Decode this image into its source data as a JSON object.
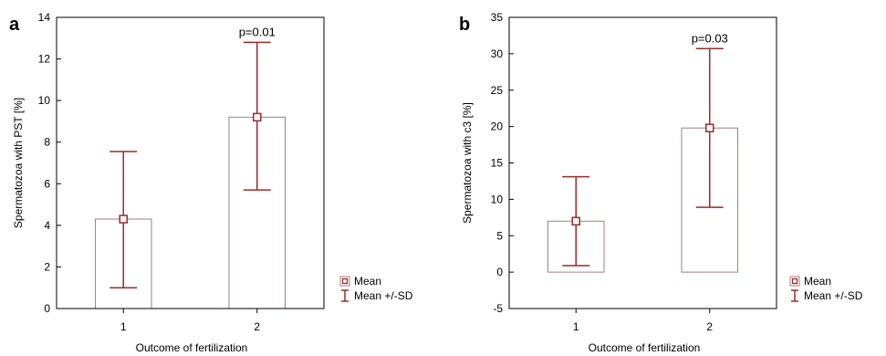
{
  "chart_data": [
    {
      "type": "bar",
      "panel_label": "a",
      "categories": [
        "1",
        "2"
      ],
      "series": [
        {
          "name": "Mean",
          "values": [
            4.3,
            9.2
          ]
        }
      ],
      "error_low": [
        1.0,
        5.7
      ],
      "error_high": [
        7.55,
        12.8
      ],
      "annotation": "p=0.01",
      "annotation_category": "2",
      "xlabel": "Outcome of fertilization",
      "ylabel": "Spermatozoa with PST [%]",
      "ylim": [
        0,
        14
      ],
      "yticks": [
        "0",
        "2",
        "4",
        "6",
        "8",
        "10",
        "12",
        "14"
      ],
      "grid": false,
      "legend": {
        "placement": "bottom-right",
        "entries": [
          "Mean",
          "Mean +/-SD"
        ]
      }
    },
    {
      "type": "bar",
      "panel_label": "b",
      "categories": [
        "1",
        "2"
      ],
      "series": [
        {
          "name": "Mean",
          "values": [
            7.0,
            19.8
          ]
        }
      ],
      "error_low": [
        0.9,
        8.9
      ],
      "error_high": [
        13.1,
        30.7
      ],
      "annotation": "p=0.03",
      "annotation_category": "2",
      "xlabel": "Outcome of fertilization",
      "ylabel": "Spermatozoa with c3 [%]",
      "ylim": [
        -5,
        35
      ],
      "yticks": [
        "-5",
        "0",
        "5",
        "10",
        "15",
        "20",
        "25",
        "30",
        "35"
      ],
      "grid": false,
      "legend": {
        "placement": "bottom-right",
        "entries": [
          "Mean",
          "Mean +/-SD"
        ]
      }
    }
  ],
  "colors": {
    "bar_fill": "#ffffff",
    "bar_stroke": "#a77e7e",
    "error_bar": "#9b2b2b",
    "mean_marker": "#9b2b2b",
    "axis": "#000000"
  }
}
